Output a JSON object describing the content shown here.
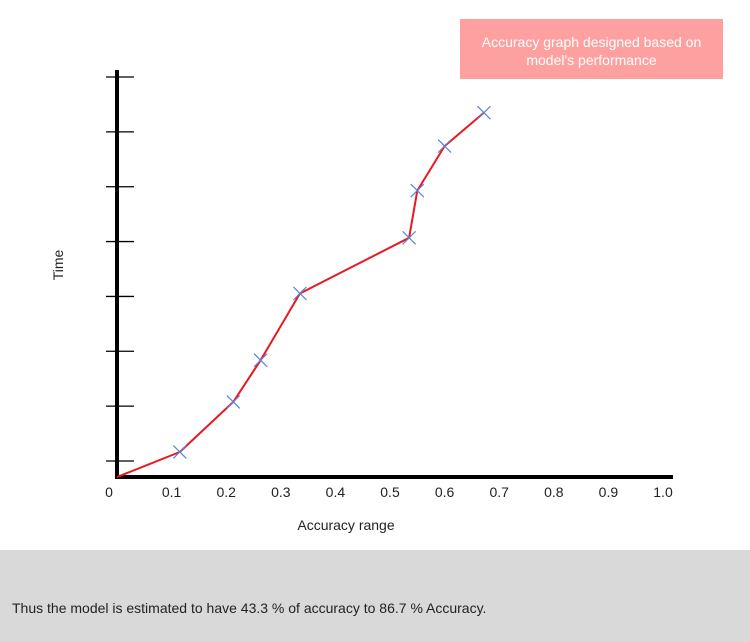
{
  "chart_data": {
    "type": "line",
    "title": "Accuracy graph designed based on model's performance",
    "xlabel": "Accuracy range",
    "ylabel": "Time",
    "x_tick_labels": [
      "0",
      "0.1",
      "0.2",
      "0.3",
      "0.4",
      "0.5",
      "0.6",
      "0.7",
      "0.8",
      "0.9",
      "1.0"
    ],
    "xlim": [
      0,
      1.0
    ],
    "ylim": [
      0,
      7.3
    ],
    "y_tick_count": 8,
    "grid": false,
    "markers": "x",
    "series": [
      {
        "x": [
          0,
          0.115,
          0.213,
          0.263,
          0.335,
          0.535,
          0.55,
          0.6,
          0.672
        ],
        "y": [
          0,
          0.45,
          1.35,
          2.1,
          3.3,
          4.3,
          5.15,
          5.95,
          6.55
        ]
      }
    ],
    "colors": {
      "line": "#e8191f",
      "marker": "#5b84d6",
      "axis": "#000000"
    }
  },
  "footer": {
    "text": "Thus the model is estimated to have 43.3 % of accuracy to 86.7 % Accuracy."
  }
}
